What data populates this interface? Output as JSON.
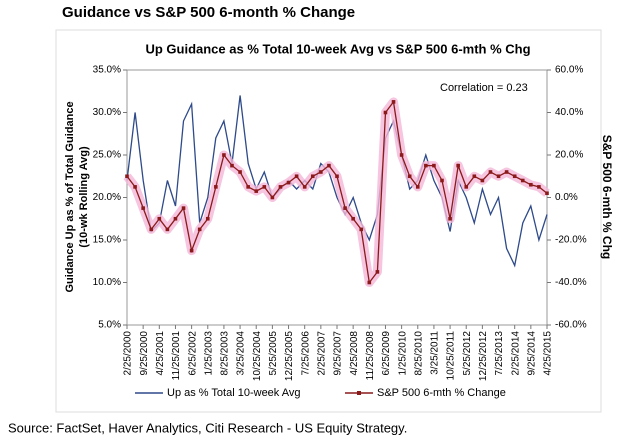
{
  "header": {
    "title": "Guidance vs S&P 500 6-month % Change"
  },
  "chart_data": {
    "type": "line",
    "title": "Up Guidance as % Total 10-week Avg vs S&P 500 6-mth % Chg",
    "annotation": "Correlation = 0.23",
    "ylabel": [
      "Guidance Up as % of Total Guidance",
      "(10-wk Rolling Avg)"
    ],
    "y2label": "S&P 500 6-mth % Chg",
    "categories": [
      "2/25/2000",
      null,
      "9/25/2000",
      null,
      "4/25/2001",
      null,
      "11/25/2001",
      null,
      "6/25/2002",
      null,
      "1/25/2003",
      null,
      "8/25/2003",
      null,
      "3/25/2004",
      null,
      "10/25/2004",
      null,
      "5/25/2005",
      null,
      "12/25/2005",
      null,
      "7/25/2006",
      null,
      "2/25/2007",
      null,
      "9/25/2007",
      null,
      "4/25/2008",
      null,
      "11/25/2008",
      null,
      "6/25/2009",
      null,
      "1/25/2010",
      null,
      "8/25/2010",
      null,
      "3/25/2011",
      null,
      "10/25/2011",
      null,
      "5/25/2012",
      null,
      "12/25/2012",
      null,
      "7/25/2013",
      null,
      "2/25/2014",
      null,
      "9/25/2014",
      null,
      "4/25/2015"
    ],
    "series": [
      {
        "name": "Up as % Total 10-week Avg",
        "color": "#2e4a8a",
        "values": [
          22,
          30,
          22,
          16,
          17,
          22,
          19,
          29,
          31,
          17,
          20,
          27,
          29,
          24,
          32,
          24,
          21,
          23,
          20,
          21,
          22,
          21,
          22,
          21,
          24,
          23,
          20,
          18,
          20,
          17,
          15,
          18,
          27,
          29,
          25,
          21,
          22,
          25,
          22,
          20,
          16,
          22,
          20,
          17,
          21,
          18,
          20,
          14,
          12,
          17,
          19,
          15,
          18
        ]
      },
      {
        "name": "S&P 500 6-mth % Change",
        "color": "#8b1a1a",
        "axis": "y2",
        "values": [
          10,
          5,
          -5,
          -15,
          -10,
          -15,
          -10,
          -5,
          -25,
          -15,
          -10,
          5,
          20,
          15,
          12,
          5,
          3,
          5,
          0,
          5,
          7,
          10,
          5,
          10,
          12,
          15,
          10,
          -5,
          -10,
          -15,
          -40,
          -35,
          40,
          45,
          20,
          10,
          5,
          15,
          15,
          8,
          -10,
          15,
          5,
          10,
          8,
          12,
          10,
          12,
          10,
          8,
          6,
          5,
          2
        ]
      }
    ],
    "ylim": [
      5,
      35
    ],
    "yticks": [
      {
        "value": 5,
        "label": "5.0%"
      },
      {
        "value": 10,
        "label": "10.0%"
      },
      {
        "value": 15,
        "label": "15.0%"
      },
      {
        "value": 20,
        "label": "20.0%"
      },
      {
        "value": 25,
        "label": "25.0%"
      },
      {
        "value": 30,
        "label": "30.0%"
      },
      {
        "value": 35,
        "label": "35.0%"
      }
    ],
    "y2lim": [
      -60,
      60
    ],
    "y2ticks": [
      {
        "value": -60,
        "label": "-60.0%"
      },
      {
        "value": -40,
        "label": "-40.0%"
      },
      {
        "value": -20,
        "label": "-20.0%"
      },
      {
        "value": 0,
        "label": "0.0%"
      },
      {
        "value": 20,
        "label": "20.0%"
      },
      {
        "value": 40,
        "label": "40.0%"
      },
      {
        "value": 60,
        "label": "60.0%"
      }
    ],
    "legend": "bottom"
  },
  "source": "Source: FactSet, Haver Analytics, Citi Research - US Equity Strategy."
}
